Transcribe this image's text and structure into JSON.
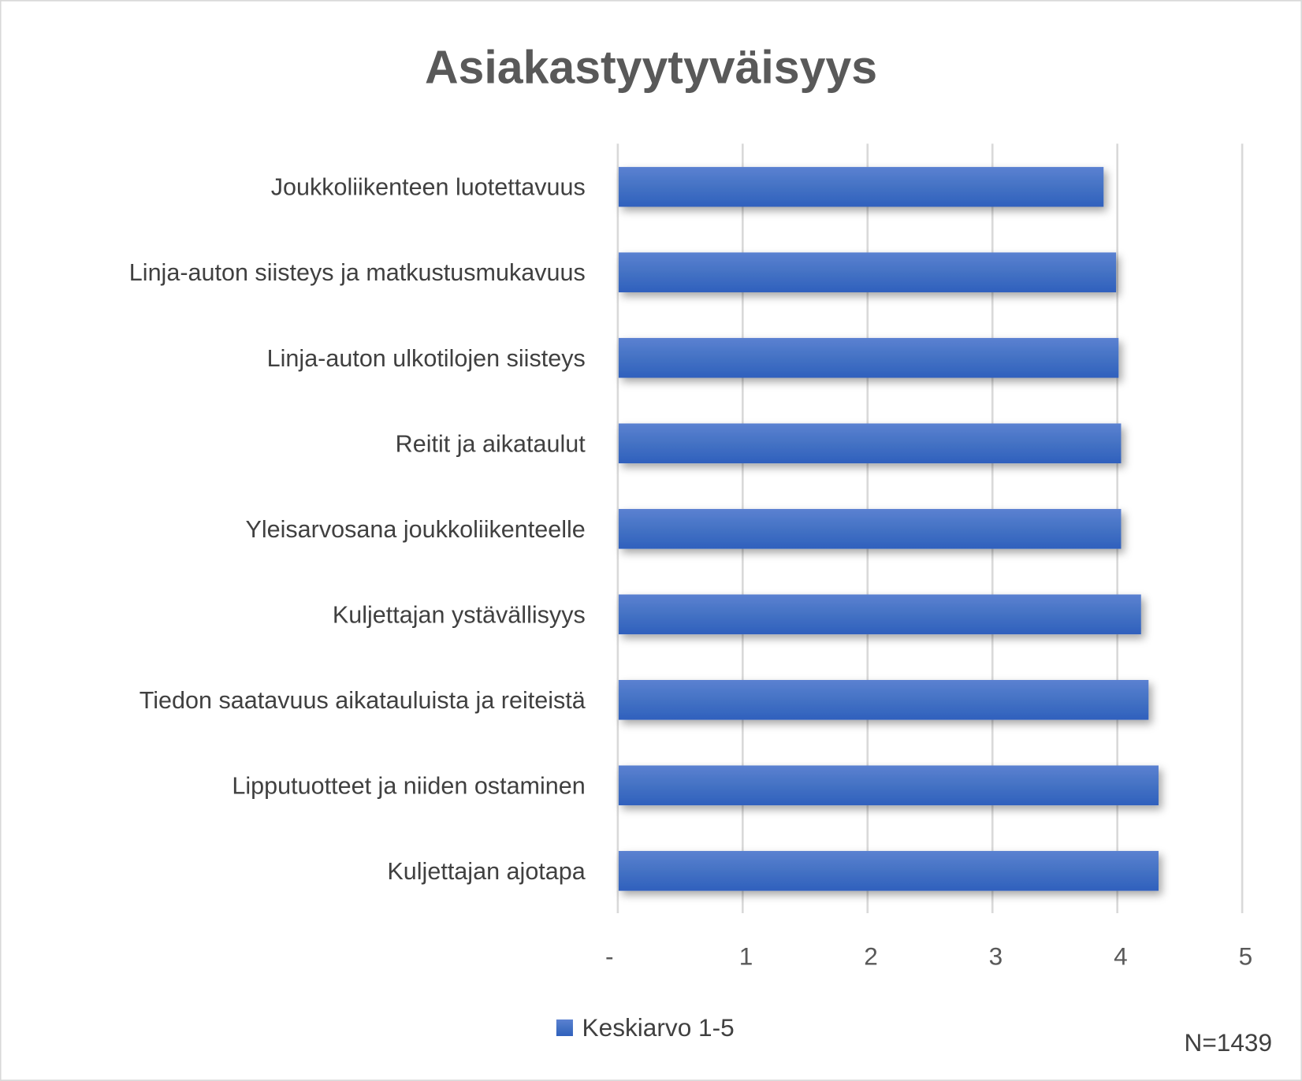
{
  "chart_data": {
    "type": "bar",
    "orientation": "horizontal",
    "title": "Asiakastyytyväisyys",
    "categories": [
      "Joukkoliikenteen luotettavuus",
      "Linja-auton siisteys ja matkustusmukavuus",
      "Linja-auton ulkotilojen siisteys",
      "Reitit ja aikataulut",
      "Yleisarvosana joukkoliikenteelle",
      "Kuljettajan ystävällisyys",
      "Tiedon saatavuus aikatauluista ja reiteistä",
      "Lipputuotteet ja niiden ostaminen",
      "Kuljettajan ajotapa"
    ],
    "series": [
      {
        "name": "Keskiarvo 1-5",
        "values": [
          3.89,
          3.99,
          4.01,
          4.03,
          4.03,
          4.19,
          4.25,
          4.33,
          4.33
        ],
        "color": "#4472C4"
      }
    ],
    "xlim": [
      0,
      5
    ],
    "xticks": [
      "-",
      "1",
      "2",
      "3",
      "4",
      "5"
    ],
    "grid": true,
    "legend_position": "bottom",
    "annotation": "N=1439"
  }
}
